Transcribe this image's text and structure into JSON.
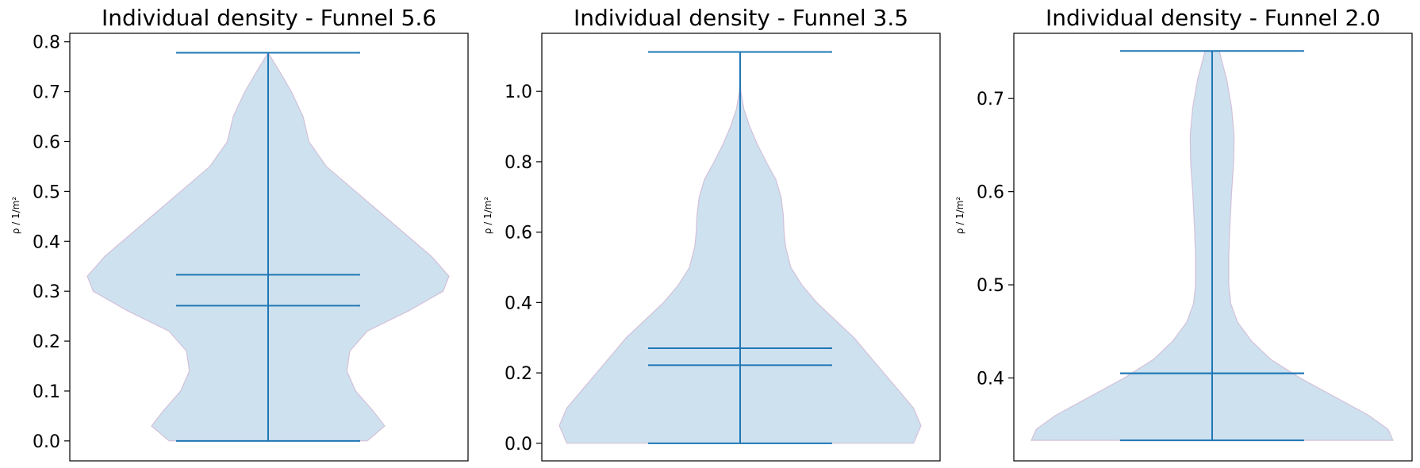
{
  "chart_data": [
    {
      "type": "violin",
      "title": "Individual density - Funnel 5.6",
      "ylabel": "ρ / 1/m²",
      "ylim": [
        -0.04,
        0.817
      ],
      "yticks": [
        "0.0",
        "0.1",
        "0.2",
        "0.3",
        "0.4",
        "0.5",
        "0.6",
        "0.7",
        "0.8"
      ],
      "min": 0.0,
      "max": 0.778,
      "mean": 0.333,
      "median": 0.271,
      "density_profile": [
        [
          0.0,
          0.17
        ],
        [
          0.03,
          0.2
        ],
        [
          0.06,
          0.18
        ],
        [
          0.1,
          0.15
        ],
        [
          0.14,
          0.135
        ],
        [
          0.18,
          0.14
        ],
        [
          0.22,
          0.17
        ],
        [
          0.26,
          0.24
        ],
        [
          0.3,
          0.3
        ],
        [
          0.33,
          0.31
        ],
        [
          0.37,
          0.28
        ],
        [
          0.41,
          0.24
        ],
        [
          0.46,
          0.19
        ],
        [
          0.51,
          0.14
        ],
        [
          0.55,
          0.1
        ],
        [
          0.6,
          0.07
        ],
        [
          0.65,
          0.06
        ],
        [
          0.7,
          0.04
        ],
        [
          0.74,
          0.02
        ],
        [
          0.778,
          0.0
        ]
      ]
    },
    {
      "type": "violin",
      "title": "Individual density - Funnel 3.5",
      "ylabel": "ρ / 1/m²",
      "ylim": [
        -0.05,
        1.165
      ],
      "yticks": [
        "0.0",
        "0.2",
        "0.4",
        "0.6",
        "0.8",
        "1.0"
      ],
      "min": 0.0,
      "max": 1.112,
      "mean": 0.27,
      "median": 0.222,
      "density_profile": [
        [
          0.0,
          0.19
        ],
        [
          0.05,
          0.2
        ],
        [
          0.1,
          0.19
        ],
        [
          0.15,
          0.17
        ],
        [
          0.2,
          0.15
        ],
        [
          0.25,
          0.13
        ],
        [
          0.3,
          0.11
        ],
        [
          0.35,
          0.085
        ],
        [
          0.4,
          0.06
        ],
        [
          0.45,
          0.04
        ],
        [
          0.5,
          0.025
        ],
        [
          0.56,
          0.018
        ],
        [
          0.6,
          0.016
        ],
        [
          0.65,
          0.015
        ],
        [
          0.7,
          0.012
        ],
        [
          0.75,
          0.005
        ],
        [
          0.8,
          -0.008
        ],
        [
          0.85,
          -0.02
        ],
        [
          0.9,
          -0.03
        ],
        [
          0.95,
          -0.038
        ],
        [
          1.0,
          -0.042
        ],
        [
          1.05,
          -0.043
        ],
        [
          1.112,
          -0.043
        ]
      ]
    },
    {
      "type": "violin",
      "title": "Individual density - Funnel 2.0",
      "ylabel": "ρ / 1/m²",
      "ylim": [
        0.311,
        0.77
      ],
      "yticks": [
        "0.4",
        "0.5",
        "0.6",
        "0.7"
      ],
      "min": 0.333,
      "max": 0.751,
      "mean": 0.405,
      "median": 0.405,
      "density_profile": [
        [
          0.333,
          0.37
        ],
        [
          0.345,
          0.36
        ],
        [
          0.36,
          0.32
        ],
        [
          0.38,
          0.25
        ],
        [
          0.4,
          0.18
        ],
        [
          0.42,
          0.12
        ],
        [
          0.44,
          0.08
        ],
        [
          0.46,
          0.052
        ],
        [
          0.48,
          0.038
        ],
        [
          0.5,
          0.034
        ],
        [
          0.53,
          0.034
        ],
        [
          0.56,
          0.036
        ],
        [
          0.6,
          0.04
        ],
        [
          0.63,
          0.044
        ],
        [
          0.66,
          0.045
        ],
        [
          0.69,
          0.04
        ],
        [
          0.72,
          0.03
        ],
        [
          0.74,
          0.02
        ],
        [
          0.751,
          0.015
        ]
      ]
    }
  ]
}
